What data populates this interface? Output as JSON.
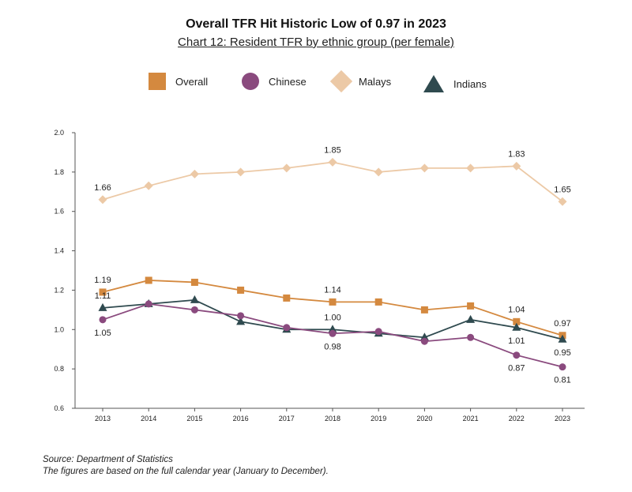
{
  "header": {
    "title": "Overall TFR Hit Historic Low of 0.97 in 2023",
    "subtitle": "Chart 12: Resident TFR by ethnic group (per female)"
  },
  "legend": [
    {
      "name": "Overall",
      "color": "#d4893f",
      "marker": "square"
    },
    {
      "name": "Chinese",
      "color": "#8a4a7e",
      "marker": "circle"
    },
    {
      "name": "Malays",
      "color": "#ecc9a6",
      "marker": "diamond"
    },
    {
      "name": "Indians",
      "color": "#2f4a4f",
      "marker": "triangle"
    }
  ],
  "chart_data": {
    "type": "line",
    "x": [
      "2013",
      "2014",
      "2015",
      "2016",
      "2017",
      "2018",
      "2019",
      "2020",
      "2021",
      "2022",
      "2023"
    ],
    "ylim": [
      0.6,
      2.0
    ],
    "yticks": [
      "0.6",
      "0.8",
      "1.0",
      "1.2",
      "1.4",
      "1.6",
      "1.8",
      "2.0"
    ],
    "grid": false,
    "legend_position": "top",
    "series": [
      {
        "name": "Malays",
        "color": "#ecc9a6",
        "marker": "diamond",
        "values": [
          1.66,
          1.73,
          1.79,
          1.8,
          1.82,
          1.85,
          1.8,
          1.82,
          1.82,
          1.83,
          1.65
        ],
        "labels": [
          {
            "index": 0,
            "text": "1.66",
            "pos": "above"
          },
          {
            "index": 5,
            "text": "1.85",
            "pos": "above"
          },
          {
            "index": 9,
            "text": "1.83",
            "pos": "above"
          },
          {
            "index": 10,
            "text": "1.65",
            "pos": "above"
          }
        ]
      },
      {
        "name": "Overall",
        "color": "#d4893f",
        "marker": "square",
        "values": [
          1.19,
          1.25,
          1.24,
          1.2,
          1.16,
          1.14,
          1.14,
          1.1,
          1.12,
          1.04,
          0.97
        ],
        "labels": [
          {
            "index": 0,
            "text": "1.19",
            "pos": "above"
          },
          {
            "index": 5,
            "text": "1.14",
            "pos": "above"
          },
          {
            "index": 9,
            "text": "1.04",
            "pos": "above"
          },
          {
            "index": 10,
            "text": "0.97",
            "pos": "above"
          }
        ]
      },
      {
        "name": "Indians",
        "color": "#2f4a4f",
        "marker": "triangle",
        "values": [
          1.11,
          1.13,
          1.15,
          1.04,
          1.0,
          1.0,
          0.98,
          0.96,
          1.05,
          1.01,
          0.95
        ],
        "labels": [
          {
            "index": 0,
            "text": "1.11",
            "pos": "above"
          },
          {
            "index": 5,
            "text": "1.00",
            "pos": "above"
          },
          {
            "index": 9,
            "text": "1.01",
            "pos": "below"
          },
          {
            "index": 10,
            "text": "0.95",
            "pos": "below"
          }
        ]
      },
      {
        "name": "Chinese",
        "color": "#8a4a7e",
        "marker": "circle",
        "values": [
          1.05,
          1.13,
          1.1,
          1.07,
          1.01,
          0.98,
          0.99,
          0.94,
          0.96,
          0.87,
          0.81
        ],
        "labels": [
          {
            "index": 0,
            "text": "1.05",
            "pos": "below"
          },
          {
            "index": 5,
            "text": "0.98",
            "pos": "below"
          },
          {
            "index": 9,
            "text": "0.87",
            "pos": "below"
          },
          {
            "index": 10,
            "text": "0.81",
            "pos": "below"
          }
        ]
      }
    ]
  },
  "footnotes": {
    "source": "Source: Department of Statistics",
    "note": "The figures are based on the full calendar year (January to December)."
  }
}
